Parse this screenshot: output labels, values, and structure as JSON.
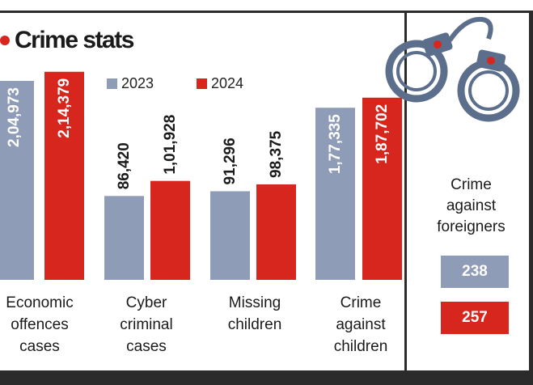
{
  "title": "Crime stats",
  "colors": {
    "y2023": "#8f9cb8",
    "y2024": "#d7261e",
    "border": "#2b2b2b",
    "accent": "#d7261e",
    "icon": "#5b6e8c"
  },
  "legend": [
    {
      "label": "2023"
    },
    {
      "label": "2024"
    }
  ],
  "side_panel": {
    "title_lines": [
      "Crime",
      "against",
      "foreigners"
    ],
    "value_2023": "238",
    "value_2024": "257"
  },
  "chart_data": {
    "type": "bar",
    "title": "Crime stats",
    "categories": [
      "Economic offences cases",
      "Cyber criminal cases",
      "Missing children",
      "Crime against children"
    ],
    "category_lines": [
      [
        "Economic",
        "offences",
        "cases"
      ],
      [
        "Cyber",
        "criminal",
        "cases"
      ],
      [
        "Missing",
        "children"
      ],
      [
        "Crime",
        "against",
        "children"
      ]
    ],
    "series": [
      {
        "name": "2023",
        "values": [
          204973,
          86420,
          91296,
          177335
        ],
        "labels": [
          "2,04,973",
          "86,420",
          "91,296",
          "1,77,335"
        ]
      },
      {
        "name": "2024",
        "values": [
          214379,
          101928,
          98375,
          187702
        ],
        "labels": [
          "2,14,379",
          "1,01,928",
          "98,375",
          "1,87,702"
        ]
      }
    ],
    "extra": {
      "category": "Crime against foreigners",
      "values": {
        "2023": 238,
        "2024": 257
      }
    },
    "grid": false,
    "legend_position": "top"
  }
}
